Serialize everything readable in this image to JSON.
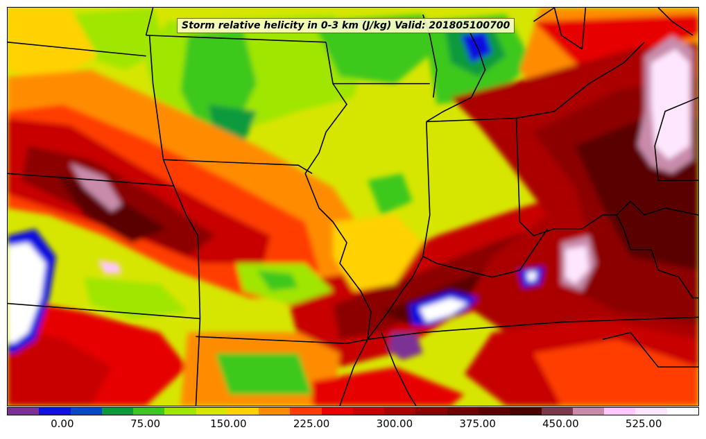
{
  "title": "Storm relative helicity in 0-3 km (J/kg) Valid: 201805100700",
  "colorbar": {
    "colors": [
      "#7b3294",
      "#1010e0",
      "#0a46c8",
      "#0a9a3c",
      "#3cc81e",
      "#a0e600",
      "#d7e600",
      "#ffd200",
      "#ff8c00",
      "#ff3c00",
      "#e60000",
      "#c80000",
      "#aa0000",
      "#8c0000",
      "#730000",
      "#5a0000",
      "#460000",
      "#7a3a4a",
      "#c88caa",
      "#ffc8ff",
      "#ffe6ff",
      "#ffffff"
    ],
    "ticks": [
      {
        "label": "0.00",
        "value": 0
      },
      {
        "label": "75.00",
        "value": 75
      },
      {
        "label": "150.00",
        "value": 150
      },
      {
        "label": "225.00",
        "value": 225
      },
      {
        "label": "300.00",
        "value": 300
      },
      {
        "label": "375.00",
        "value": 375
      },
      {
        "label": "450.00",
        "value": 450
      },
      {
        "label": "525.00",
        "value": 525
      }
    ],
    "range": [
      -50,
      575
    ]
  },
  "chart_data": {
    "type": "heatmap",
    "title": "Storm relative helicity in 0-3 km (J/kg) Valid: 201805100700",
    "variable": "Storm relative helicity 0-3 km",
    "units": "J/kg",
    "valid_time": "201805100700",
    "colorbar_ticks": [
      0,
      75,
      150,
      225,
      300,
      375,
      450,
      525
    ],
    "value_range": [
      -50,
      575
    ]
  }
}
